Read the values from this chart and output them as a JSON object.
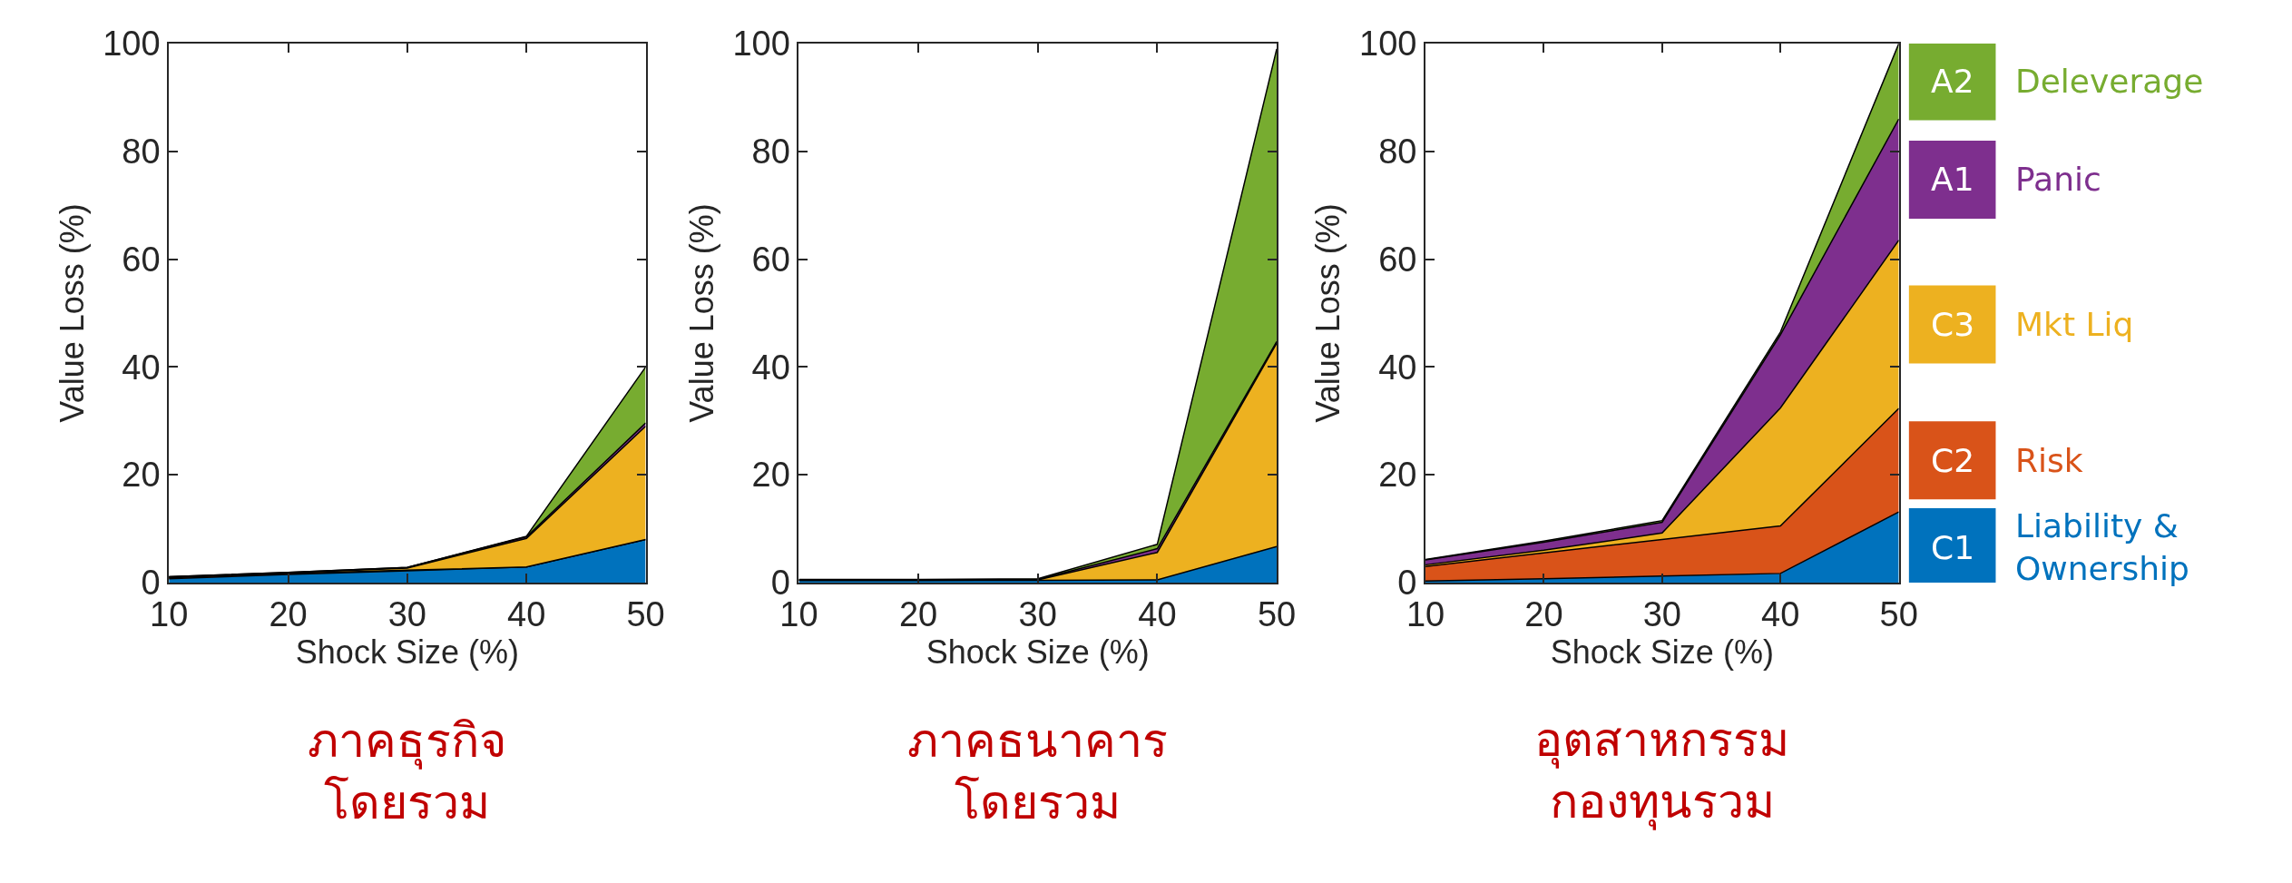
{
  "chart_data": [
    {
      "type": "area",
      "stacked": true,
      "title": "ภาคธุรกิจ\nโดยรวม",
      "xlabel": "Shock Size (%)",
      "ylabel": "Value Loss (%)",
      "x": [
        10,
        20,
        30,
        40,
        50
      ],
      "xlim": [
        10,
        50
      ],
      "xticks": [
        10,
        20,
        30,
        40,
        50
      ],
      "ylim": [
        0,
        100
      ],
      "yticks": [
        0,
        20,
        40,
        60,
        80,
        100
      ],
      "grid": false,
      "legend": false,
      "series": [
        {
          "color": "#0072bd",
          "values": [
            0.7,
            1.5,
            2.2,
            2.9,
            8.0
          ]
        },
        {
          "color": "#d95319",
          "values": [
            0.2,
            0.2,
            0.1,
            0,
            0
          ]
        },
        {
          "color": "#edb120",
          "values": [
            0.1,
            0.1,
            0.4,
            5.3,
            21.0
          ]
        },
        {
          "color": "#7e2f8e",
          "values": [
            0.1,
            0.1,
            0.1,
            0.3,
            0.6
          ]
        },
        {
          "color": "#77ac30",
          "values": [
            0,
            0,
            0,
            0.1,
            10.4
          ]
        }
      ]
    },
    {
      "type": "area",
      "stacked": true,
      "title": "ภาคธนาคาร\nโดยรวม",
      "xlabel": "Shock Size (%)",
      "ylabel": "Value Loss (%)",
      "x": [
        10,
        20,
        30,
        40,
        50
      ],
      "xlim": [
        10,
        50
      ],
      "xticks": [
        10,
        20,
        30,
        40,
        50
      ],
      "ylim": [
        0,
        100
      ],
      "yticks": [
        0,
        20,
        40,
        60,
        80,
        100
      ],
      "grid": false,
      "legend": false,
      "series": [
        {
          "color": "#0072bd",
          "values": [
            0.4,
            0.4,
            0.4,
            0.5,
            6.7
          ]
        },
        {
          "color": "#edb120",
          "values": [
            0,
            0,
            0.1,
            5.1,
            37.7
          ]
        },
        {
          "color": "#7e2f8e",
          "values": [
            0.1,
            0.1,
            0.1,
            0.7,
            0.3
          ]
        },
        {
          "color": "#77ac30",
          "values": [
            0.1,
            0.1,
            0.1,
            0.8,
            54.3
          ]
        }
      ]
    },
    {
      "type": "area",
      "stacked": true,
      "title": "อุตสาหกรรม\nกองทุนรวม",
      "xlabel": "Shock Size (%)",
      "ylabel": "Value Loss (%)",
      "x": [
        10,
        20,
        30,
        40,
        50
      ],
      "xlim": [
        10,
        50
      ],
      "xticks": [
        10,
        20,
        30,
        40,
        50
      ],
      "ylim": [
        0,
        100
      ],
      "yticks": [
        0,
        20,
        40,
        60,
        80,
        100
      ],
      "grid": false,
      "legend": "right",
      "annotations": [
        "C1",
        "C2",
        "C3",
        "A1",
        "A2"
      ],
      "series": [
        {
          "name": "Liability & Ownership",
          "color": "#0072bd",
          "values": [
            0.3,
            0.7,
            1.2,
            1.7,
            13.1
          ]
        },
        {
          "name": "Risk",
          "color": "#d95319",
          "values": [
            2.7,
            4.8,
            6.8,
            8.8,
            19.2
          ]
        },
        {
          "name": "Mkt Liq",
          "color": "#edb120",
          "values": [
            0.3,
            0.5,
            1.2,
            21.9,
            31.2
          ]
        },
        {
          "name": "Panic",
          "color": "#7e2f8e",
          "values": [
            0.9,
            1.5,
            2.0,
            13.6,
            22.5
          ]
        },
        {
          "name": "Deleverage",
          "color": "#77ac30",
          "values": [
            0.1,
            0.2,
            0.3,
            0.5,
            14.0
          ]
        }
      ]
    }
  ]
}
